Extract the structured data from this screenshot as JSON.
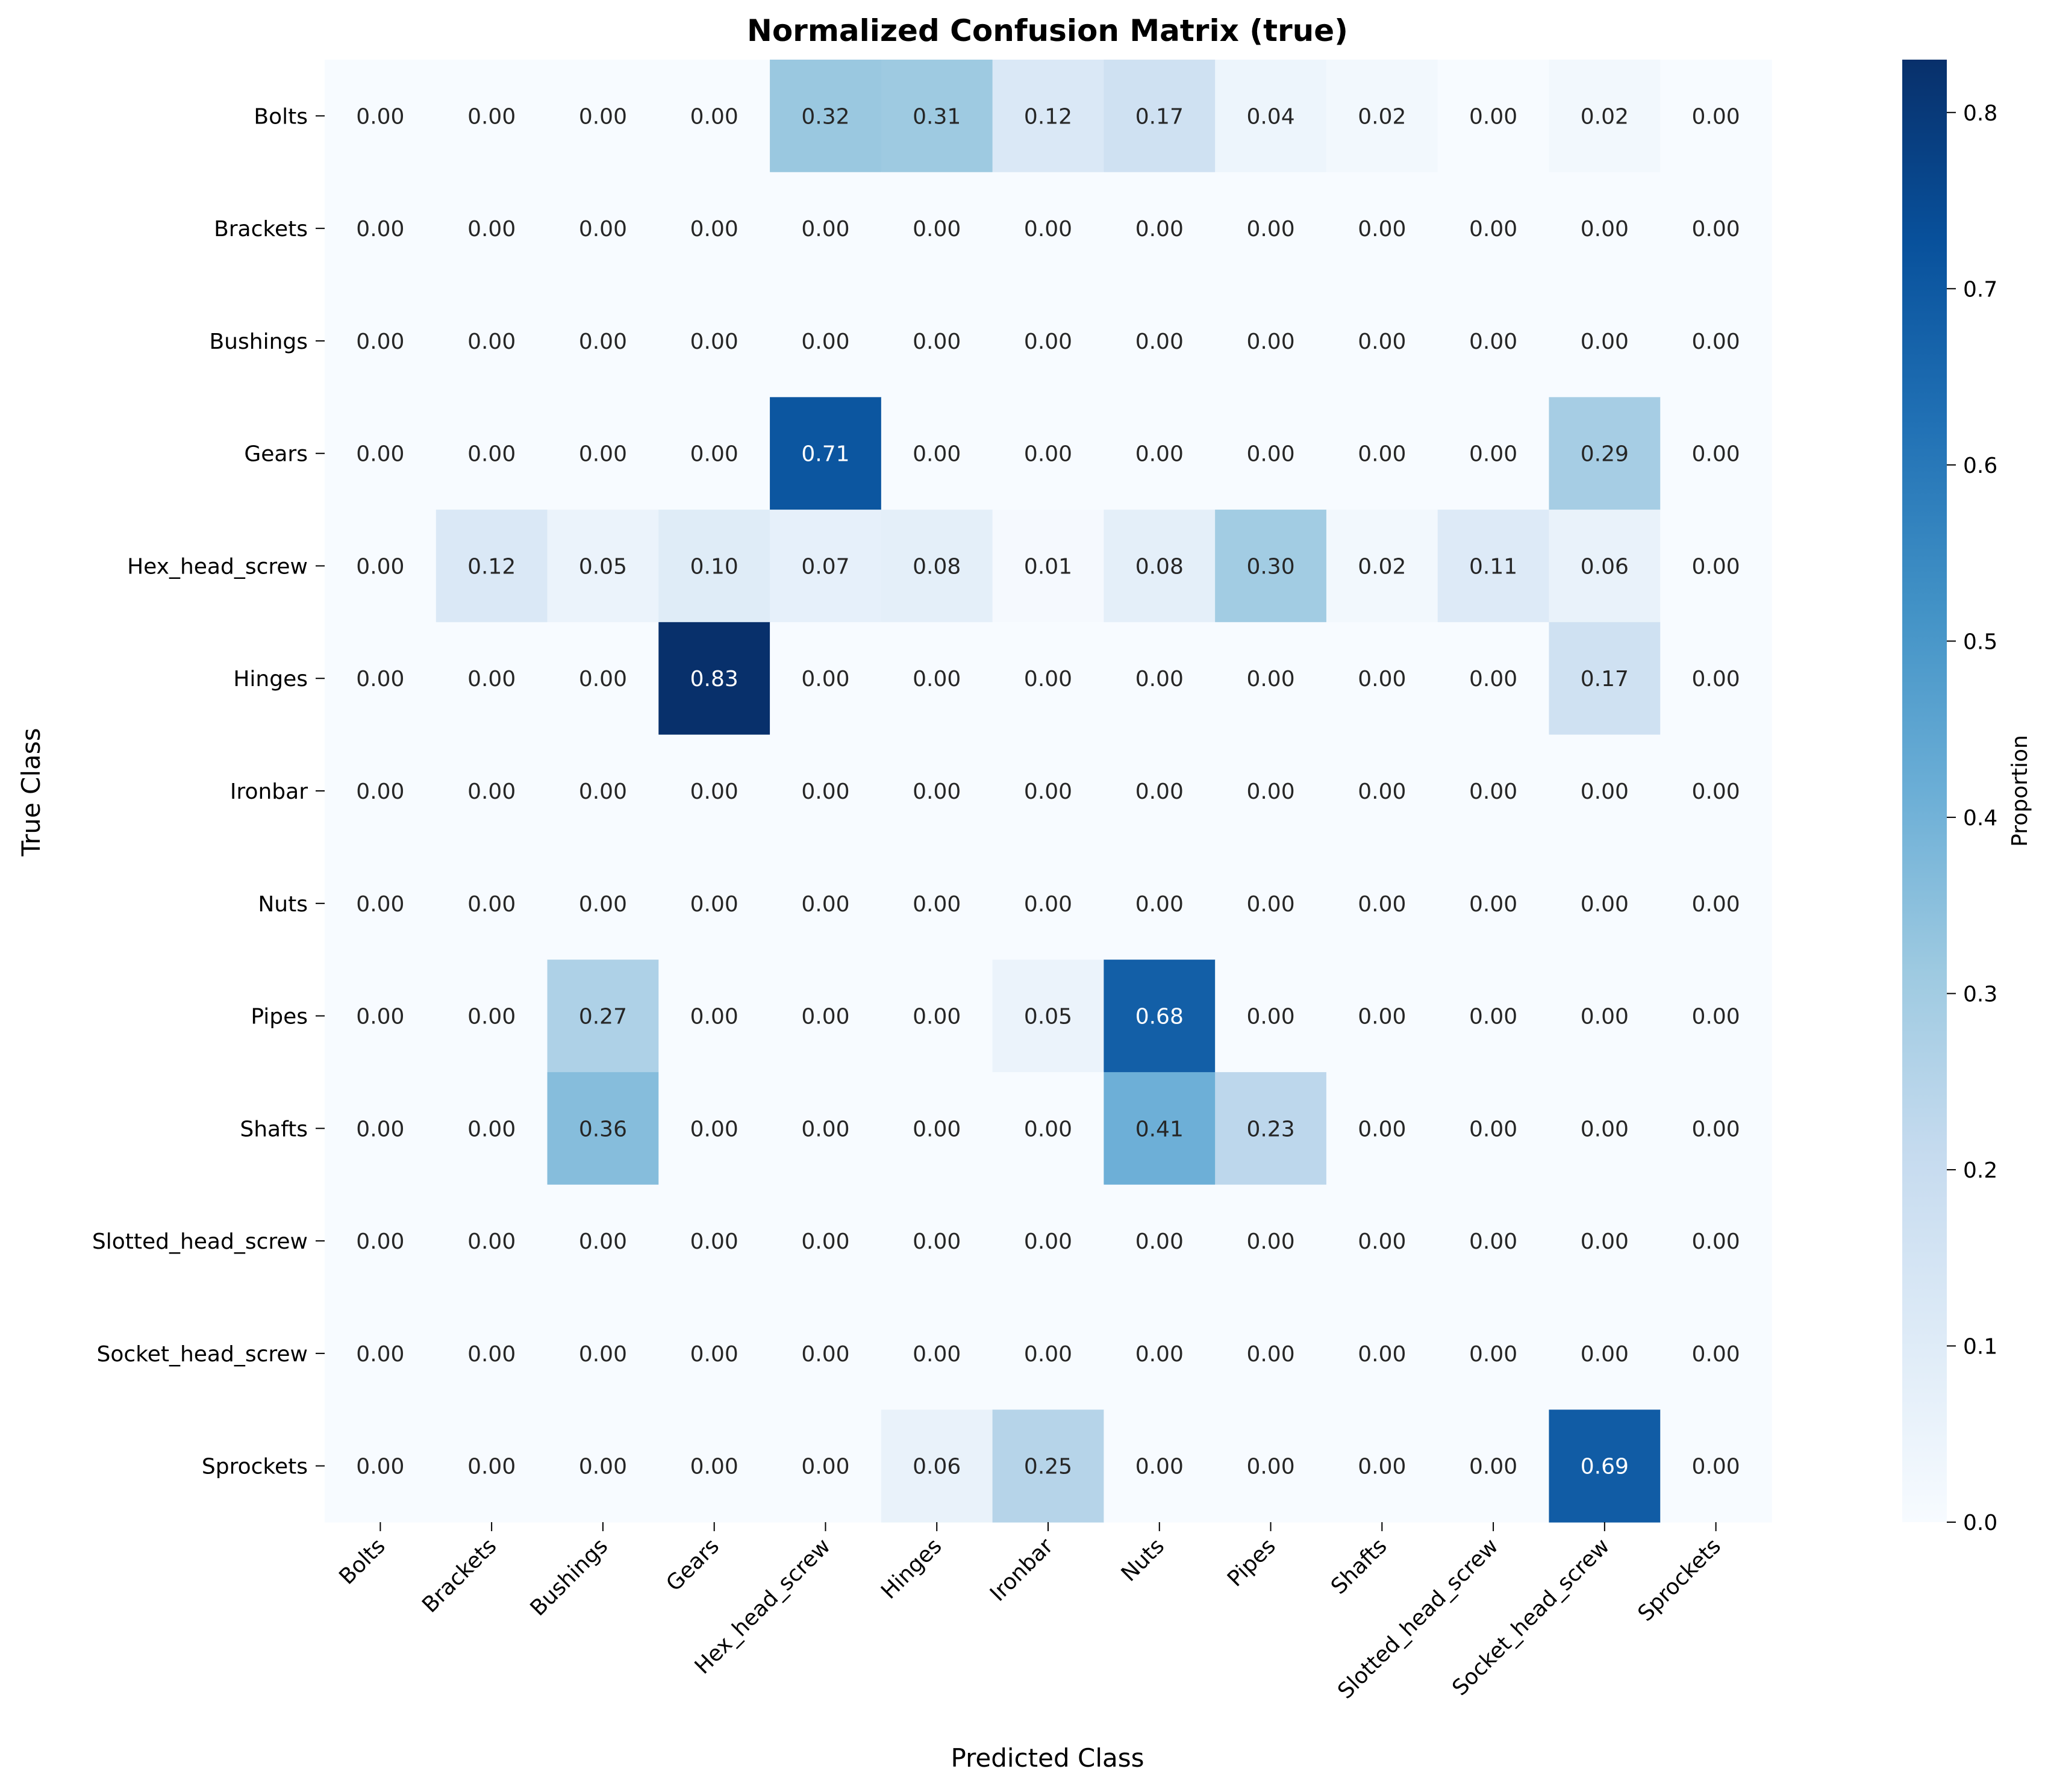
{
  "chart_data": {
    "type": "heatmap",
    "title": "Normalized Confusion Matrix (true)",
    "xlabel": "Predicted Class",
    "ylabel": "True Class",
    "colorbar_label": "Proportion",
    "colormap": "Blues",
    "color_scale": {
      "low": "#f7fbff",
      "high": "#08306b"
    },
    "vrange": [
      0,
      0.83
    ],
    "colorbar_ticks": [
      "0.0",
      "0.1",
      "0.2",
      "0.3",
      "0.4",
      "0.5",
      "0.6",
      "0.7",
      "0.8"
    ],
    "x_categories": [
      "Bolts",
      "Brackets",
      "Bushings",
      "Gears",
      "Hex_head_screw",
      "Hinges",
      "Ironbar",
      "Nuts",
      "Pipes",
      "Shafts",
      "Slotted_head_screw",
      "Socket_head_screw",
      "Sprockets"
    ],
    "y_categories": [
      "Bolts",
      "Brackets",
      "Bushings",
      "Gears",
      "Hex_head_screw",
      "Hinges",
      "Ironbar",
      "Nuts",
      "Pipes",
      "Shafts",
      "Slotted_head_screw",
      "Socket_head_screw",
      "Sprockets"
    ],
    "values": [
      [
        0.0,
        0.0,
        0.0,
        0.0,
        0.32,
        0.31,
        0.12,
        0.17,
        0.04,
        0.02,
        0.0,
        0.02,
        0.0
      ],
      [
        0.0,
        0.0,
        0.0,
        0.0,
        0.0,
        0.0,
        0.0,
        0.0,
        0.0,
        0.0,
        0.0,
        0.0,
        0.0
      ],
      [
        0.0,
        0.0,
        0.0,
        0.0,
        0.0,
        0.0,
        0.0,
        0.0,
        0.0,
        0.0,
        0.0,
        0.0,
        0.0
      ],
      [
        0.0,
        0.0,
        0.0,
        0.0,
        0.71,
        0.0,
        0.0,
        0.0,
        0.0,
        0.0,
        0.0,
        0.29,
        0.0
      ],
      [
        0.0,
        0.12,
        0.05,
        0.1,
        0.07,
        0.08,
        0.01,
        0.08,
        0.3,
        0.02,
        0.11,
        0.06,
        0.0
      ],
      [
        0.0,
        0.0,
        0.0,
        0.83,
        0.0,
        0.0,
        0.0,
        0.0,
        0.0,
        0.0,
        0.0,
        0.17,
        0.0
      ],
      [
        0.0,
        0.0,
        0.0,
        0.0,
        0.0,
        0.0,
        0.0,
        0.0,
        0.0,
        0.0,
        0.0,
        0.0,
        0.0
      ],
      [
        0.0,
        0.0,
        0.0,
        0.0,
        0.0,
        0.0,
        0.0,
        0.0,
        0.0,
        0.0,
        0.0,
        0.0,
        0.0
      ],
      [
        0.0,
        0.0,
        0.27,
        0.0,
        0.0,
        0.0,
        0.05,
        0.68,
        0.0,
        0.0,
        0.0,
        0.0,
        0.0
      ],
      [
        0.0,
        0.0,
        0.36,
        0.0,
        0.0,
        0.0,
        0.0,
        0.41,
        0.23,
        0.0,
        0.0,
        0.0,
        0.0
      ],
      [
        0.0,
        0.0,
        0.0,
        0.0,
        0.0,
        0.0,
        0.0,
        0.0,
        0.0,
        0.0,
        0.0,
        0.0,
        0.0
      ],
      [
        0.0,
        0.0,
        0.0,
        0.0,
        0.0,
        0.0,
        0.0,
        0.0,
        0.0,
        0.0,
        0.0,
        0.0,
        0.0
      ],
      [
        0.0,
        0.0,
        0.0,
        0.0,
        0.0,
        0.06,
        0.25,
        0.0,
        0.0,
        0.0,
        0.0,
        0.69,
        0.0
      ]
    ],
    "cell_labels": [
      [
        "0.00",
        "0.00",
        "0.00",
        "0.00",
        "0.32",
        "0.31",
        "0.12",
        "0.17",
        "0.04",
        "0.02",
        "0.00",
        "0.02",
        "0.00"
      ],
      [
        "0.00",
        "0.00",
        "0.00",
        "0.00",
        "0.00",
        "0.00",
        "0.00",
        "0.00",
        "0.00",
        "0.00",
        "0.00",
        "0.00",
        "0.00"
      ],
      [
        "0.00",
        "0.00",
        "0.00",
        "0.00",
        "0.00",
        "0.00",
        "0.00",
        "0.00",
        "0.00",
        "0.00",
        "0.00",
        "0.00",
        "0.00"
      ],
      [
        "0.00",
        "0.00",
        "0.00",
        "0.00",
        "0.71",
        "0.00",
        "0.00",
        "0.00",
        "0.00",
        "0.00",
        "0.00",
        "0.29",
        "0.00"
      ],
      [
        "0.00",
        "0.12",
        "0.05",
        "0.10",
        "0.07",
        "0.08",
        "0.01",
        "0.08",
        "0.30",
        "0.02",
        "0.11",
        "0.06",
        "0.00"
      ],
      [
        "0.00",
        "0.00",
        "0.00",
        "0.83",
        "0.00",
        "0.00",
        "0.00",
        "0.00",
        "0.00",
        "0.00",
        "0.00",
        "0.17",
        "0.00"
      ],
      [
        "0.00",
        "0.00",
        "0.00",
        "0.00",
        "0.00",
        "0.00",
        "0.00",
        "0.00",
        "0.00",
        "0.00",
        "0.00",
        "0.00",
        "0.00"
      ],
      [
        "0.00",
        "0.00",
        "0.00",
        "0.00",
        "0.00",
        "0.00",
        "0.00",
        "0.00",
        "0.00",
        "0.00",
        "0.00",
        "0.00",
        "0.00"
      ],
      [
        "0.00",
        "0.00",
        "0.27",
        "0.00",
        "0.00",
        "0.00",
        "0.05",
        "0.68",
        "0.00",
        "0.00",
        "0.00",
        "0.00",
        "0.00"
      ],
      [
        "0.00",
        "0.00",
        "0.36",
        "0.00",
        "0.00",
        "0.00",
        "0.00",
        "0.41",
        "0.23",
        "0.00",
        "0.00",
        "0.00",
        "0.00"
      ],
      [
        "0.00",
        "0.00",
        "0.00",
        "0.00",
        "0.00",
        "0.00",
        "0.00",
        "0.00",
        "0.00",
        "0.00",
        "0.00",
        "0.00",
        "0.00"
      ],
      [
        "0.00",
        "0.00",
        "0.00",
        "0.00",
        "0.00",
        "0.00",
        "0.00",
        "0.00",
        "0.00",
        "0.00",
        "0.00",
        "0.00",
        "0.00"
      ],
      [
        "0.00",
        "0.00",
        "0.00",
        "0.00",
        "0.00",
        "0.06",
        "0.25",
        "0.00",
        "0.00",
        "0.00",
        "0.00",
        "0.69",
        "0.00"
      ]
    ],
    "grid": false
  }
}
